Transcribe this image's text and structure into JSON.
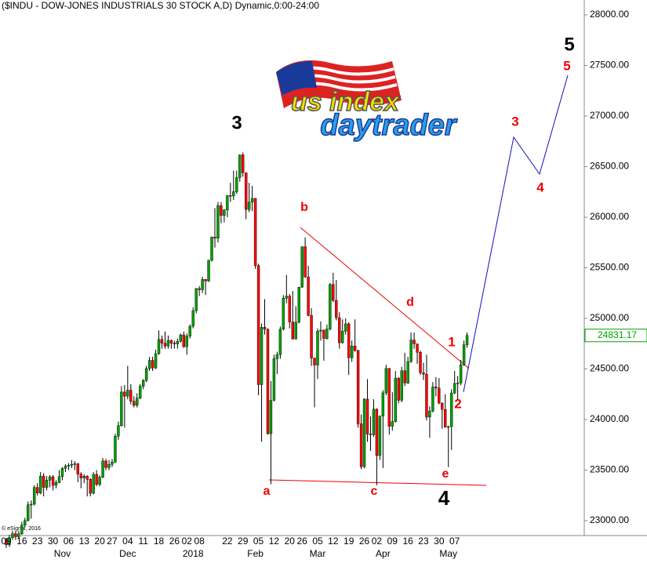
{
  "chart_data": {
    "type": "candlestick",
    "title": "($INDU - DOW-JONES INDUSTRIALS 30 STOCK A,D) Dynamic,0:00-24:00",
    "copyright": "© eSignal, 2016",
    "logo": {
      "line1": "us index",
      "line2": "daytrader"
    },
    "up_color": "#00a000",
    "down_color": "#ff0000",
    "ylim": [
      22853,
      28147
    ],
    "yticks": [
      {
        "value": 23000,
        "label": "23000.00"
      },
      {
        "value": 23500,
        "label": "23500.00"
      },
      {
        "value": 24000,
        "label": "24000.00"
      },
      {
        "value": 24500,
        "label": "24500.00"
      },
      {
        "value": 25000,
        "label": "25000.00"
      },
      {
        "value": 25500,
        "label": "25500.00"
      },
      {
        "value": 26000,
        "label": "26000.00"
      },
      {
        "value": 26500,
        "label": "26500.00"
      },
      {
        "value": 27000,
        "label": "27000.00"
      },
      {
        "value": 27500,
        "label": "27500.00"
      },
      {
        "value": 28000,
        "label": "28000.00"
      }
    ],
    "months": [
      "Nov",
      "Dec",
      "2018",
      "Feb",
      "Mar",
      "Apr",
      "May"
    ],
    "annotations": [
      "3",
      "b",
      "a",
      "c",
      "d",
      "e",
      "4",
      "1",
      "2",
      "3",
      "4",
      "5",
      "5"
    ],
    "categories": [
      "09",
      null,
      null,
      null,
      null,
      "16",
      null,
      null,
      null,
      null,
      "23",
      null,
      null,
      null,
      null,
      "30",
      null,
      null,
      null,
      null,
      "06",
      null,
      null,
      null,
      null,
      "13",
      null,
      null,
      null,
      null,
      "20",
      null,
      null,
      null,
      "27",
      null,
      null,
      null,
      null,
      "04",
      null,
      null,
      null,
      null,
      "11",
      null,
      null,
      null,
      null,
      "18",
      null,
      null,
      null,
      null,
      "26",
      null,
      null,
      null,
      "02",
      null,
      null,
      null,
      "08",
      null,
      null,
      null,
      null,
      null,
      null,
      null,
      null,
      "22",
      null,
      null,
      null,
      null,
      "29",
      null,
      null,
      null,
      null,
      "05",
      null,
      null,
      null,
      null,
      "12",
      null,
      null,
      null,
      null,
      "20",
      null,
      null,
      null,
      "26",
      null,
      null,
      null,
      null,
      "05",
      null,
      null,
      null,
      null,
      "12",
      null,
      null,
      null,
      null,
      "19",
      null,
      null,
      null,
      null,
      "26",
      null,
      null,
      null,
      "02",
      null,
      null,
      null,
      null,
      "09",
      null,
      null,
      null,
      null,
      "16",
      null,
      null,
      null,
      null,
      "23",
      null,
      null,
      null,
      null,
      "30",
      null,
      null,
      null,
      null,
      "07",
      null,
      null,
      null,
      null
    ],
    "candles": [
      [
        22800,
        22830,
        22730,
        22761
      ],
      [
        22761,
        22860,
        22740,
        22831
      ],
      [
        22831,
        22900,
        22810,
        22872
      ],
      [
        22872,
        22900,
        22810,
        22841
      ],
      [
        22841,
        22900,
        22820,
        22871
      ],
      [
        22871,
        22990,
        22860,
        22957
      ],
      [
        22957,
        23030,
        22930,
        23002
      ],
      [
        23002,
        23190,
        22990,
        23158
      ],
      [
        23158,
        23200,
        23020,
        23163
      ],
      [
        23163,
        23350,
        23150,
        23329
      ],
      [
        23329,
        23370,
        23250,
        23274
      ],
      [
        23274,
        23480,
        23260,
        23441
      ],
      [
        23441,
        23470,
        23240,
        23329
      ],
      [
        23329,
        23440,
        23300,
        23401
      ],
      [
        23401,
        23450,
        23330,
        23434
      ],
      [
        23434,
        23450,
        23300,
        23349
      ],
      [
        23349,
        23400,
        23320,
        23377
      ],
      [
        23377,
        23500,
        23370,
        23436
      ],
      [
        23436,
        23530,
        23400,
        23516
      ],
      [
        23516,
        23560,
        23480,
        23539
      ],
      [
        23539,
        23570,
        23500,
        23548
      ],
      [
        23548,
        23600,
        23520,
        23557
      ],
      [
        23557,
        23590,
        23500,
        23563
      ],
      [
        23563,
        23570,
        23380,
        23461
      ],
      [
        23461,
        23480,
        23320,
        23422
      ],
      [
        23422,
        23460,
        23370,
        23440
      ],
      [
        23440,
        23450,
        23240,
        23409
      ],
      [
        23409,
        23420,
        23240,
        23271
      ],
      [
        23271,
        23480,
        23260,
        23458
      ],
      [
        23458,
        23500,
        23340,
        23358
      ],
      [
        23358,
        23450,
        23340,
        23430
      ],
      [
        23430,
        23620,
        23420,
        23590
      ],
      [
        23590,
        23610,
        23500,
        23526
      ],
      [
        23526,
        23600,
        23500,
        23557
      ],
      [
        23557,
        23610,
        23530,
        23580
      ],
      [
        23580,
        23860,
        23570,
        23836
      ],
      [
        23836,
        23980,
        23800,
        23940
      ],
      [
        23940,
        24330,
        23930,
        24272
      ],
      [
        24272,
        24340,
        23920,
        24231
      ],
      [
        24231,
        24530,
        24200,
        24290
      ],
      [
        24290,
        24350,
        24150,
        24180
      ],
      [
        24180,
        24230,
        24120,
        24140
      ],
      [
        24140,
        24260,
        24120,
        24211
      ],
      [
        24211,
        24350,
        24200,
        24329
      ],
      [
        24329,
        24400,
        24300,
        24386
      ],
      [
        24386,
        24530,
        24370,
        24504
      ],
      [
        24504,
        24620,
        24480,
        24585
      ],
      [
        24585,
        24620,
        24480,
        24509
      ],
      [
        24509,
        24690,
        24500,
        24651
      ],
      [
        24651,
        24880,
        24640,
        24792
      ],
      [
        24792,
        24830,
        24700,
        24754
      ],
      [
        24754,
        24870,
        24700,
        24726
      ],
      [
        24726,
        24830,
        24700,
        24782
      ],
      [
        24782,
        24790,
        24700,
        24754
      ],
      [
        24754,
        24780,
        24700,
        24746
      ],
      [
        24746,
        24800,
        24700,
        24774
      ],
      [
        24774,
        24850,
        24760,
        24837
      ],
      [
        24837,
        24870,
        24710,
        24719
      ],
      [
        24719,
        24850,
        24640,
        24824
      ],
      [
        24824,
        24940,
        24800,
        24922
      ],
      [
        24922,
        25110,
        24900,
        25075
      ],
      [
        25075,
        25300,
        25050,
        25295
      ],
      [
        25295,
        25320,
        25220,
        25283
      ],
      [
        25283,
        25410,
        25250,
        25385
      ],
      [
        25385,
        25390,
        25230,
        25369
      ],
      [
        25369,
        25580,
        25360,
        25574
      ],
      [
        25574,
        25810,
        25560,
        25803
      ],
      [
        25803,
        26090,
        25700,
        25792
      ],
      [
        25792,
        26150,
        25750,
        26115
      ],
      [
        26115,
        26150,
        25940,
        26017
      ],
      [
        26017,
        26080,
        25950,
        26071
      ],
      [
        26071,
        26220,
        26000,
        26214
      ],
      [
        26214,
        26340,
        26150,
        26210
      ],
      [
        26210,
        26460,
        26170,
        26252
      ],
      [
        26252,
        26460,
        26230,
        26392
      ],
      [
        26392,
        26620,
        26350,
        26616
      ],
      [
        26616,
        26640,
        26400,
        26439
      ],
      [
        26439,
        26440,
        25980,
        26076
      ],
      [
        26076,
        26340,
        26050,
        26149
      ],
      [
        26149,
        26310,
        26060,
        26186
      ],
      [
        26186,
        26190,
        25490,
        25521
      ],
      [
        25521,
        25540,
        24240,
        24345
      ],
      [
        24345,
        24950,
        23780,
        24912
      ],
      [
        24912,
        25190,
        24840,
        24893
      ],
      [
        24893,
        24900,
        23850,
        23860
      ],
      [
        23860,
        24380,
        23360,
        24190
      ],
      [
        24190,
        24640,
        24180,
        24601
      ],
      [
        24601,
        24670,
        24450,
        24640
      ],
      [
        24640,
        24920,
        24600,
        24893
      ],
      [
        24893,
        25230,
        24880,
        25200
      ],
      [
        25200,
        25430,
        25150,
        25219
      ],
      [
        25219,
        25240,
        24900,
        24964
      ],
      [
        24964,
        25270,
        24790,
        24797
      ],
      [
        24797,
        25120,
        24790,
        24962
      ],
      [
        24962,
        25310,
        24950,
        25309
      ],
      [
        25309,
        25710,
        25300,
        25709
      ],
      [
        25709,
        25800,
        25400,
        25410
      ],
      [
        25410,
        25520,
        25020,
        25029
      ],
      [
        25029,
        25100,
        24530,
        24608
      ],
      [
        24608,
        24610,
        24120,
        24538
      ],
      [
        24538,
        24900,
        24400,
        24874
      ],
      [
        24874,
        24970,
        24780,
        24884
      ],
      [
        24884,
        24890,
        24580,
        24801
      ],
      [
        24801,
        24940,
        24790,
        24895
      ],
      [
        24895,
        25350,
        24880,
        25336
      ],
      [
        25336,
        25450,
        25160,
        25178
      ],
      [
        25178,
        25380,
        24980,
        25007
      ],
      [
        25007,
        25060,
        24700,
        24759
      ],
      [
        24759,
        24990,
        24750,
        24873
      ],
      [
        24873,
        25000,
        24840,
        24946
      ],
      [
        24946,
        24960,
        24440,
        24610
      ],
      [
        24610,
        24780,
        24570,
        24727
      ],
      [
        24727,
        24990,
        24670,
        24682
      ],
      [
        24682,
        24690,
        23920,
        23958
      ],
      [
        23958,
        24050,
        23510,
        23533
      ],
      [
        23533,
        24210,
        23520,
        24202
      ],
      [
        24202,
        24400,
        23780,
        23857
      ],
      [
        23857,
        24030,
        23690,
        23849
      ],
      [
        23849,
        24200,
        23830,
        24103
      ],
      [
        24103,
        24110,
        23350,
        23644
      ],
      [
        23644,
        24040,
        23600,
        24033
      ],
      [
        24033,
        24290,
        23520,
        24264
      ],
      [
        24264,
        24540,
        24240,
        24505
      ],
      [
        24505,
        24510,
        23850,
        23933
      ],
      [
        23933,
        24270,
        23890,
        23979
      ],
      [
        23979,
        24480,
        23970,
        24408
      ],
      [
        24408,
        24420,
        24160,
        24190
      ],
      [
        24190,
        24520,
        24170,
        24483
      ],
      [
        24483,
        24660,
        24330,
        24361
      ],
      [
        24361,
        24620,
        24350,
        24573
      ],
      [
        24573,
        24860,
        24560,
        24786
      ],
      [
        24786,
        24860,
        24700,
        24748
      ],
      [
        24748,
        24750,
        24550,
        24665
      ],
      [
        24665,
        24680,
        24440,
        24463
      ],
      [
        24463,
        24560,
        24390,
        24448
      ],
      [
        24448,
        24640,
        23990,
        24024
      ],
      [
        24024,
        24130,
        23820,
        24084
      ],
      [
        24084,
        24370,
        24070,
        24322
      ],
      [
        24322,
        24420,
        24230,
        24311
      ],
      [
        24311,
        24410,
        24150,
        24163
      ],
      [
        24163,
        24170,
        23910,
        24100
      ],
      [
        24100,
        24250,
        23920,
        23925
      ],
      [
        23925,
        23940,
        23530,
        23930
      ],
      [
        23930,
        24300,
        23700,
        24263
      ],
      [
        24263,
        24480,
        24250,
        24357
      ],
      [
        24357,
        24430,
        24200,
        24361
      ],
      [
        24361,
        24590,
        24340,
        24542
      ],
      [
        24542,
        24780,
        24530,
        24739
      ],
      [
        24739,
        24860,
        24710,
        24831.17
      ]
    ]
  }
}
